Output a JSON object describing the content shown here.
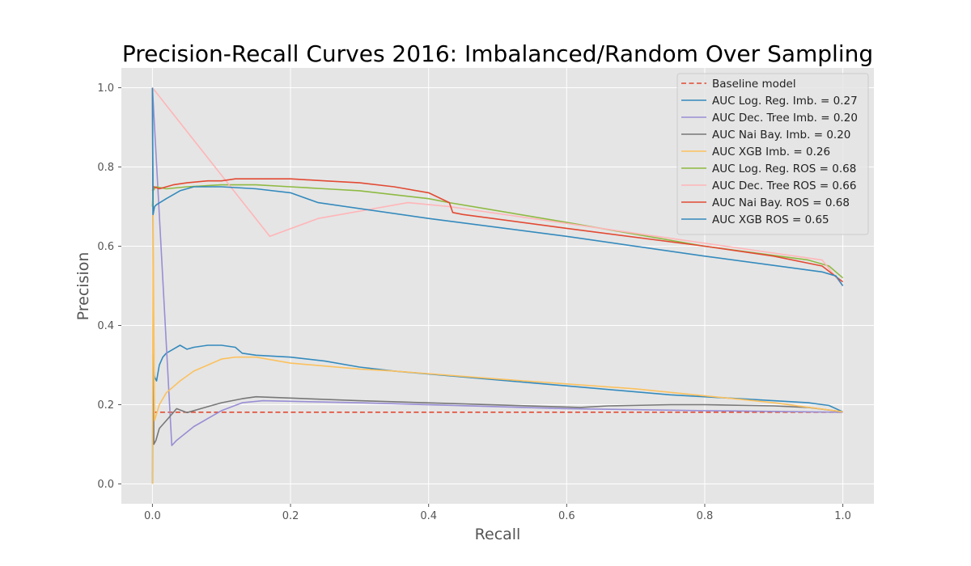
{
  "chart_data": {
    "type": "line",
    "title": "Precision-Recall Curves 2016: Imbalanced/Random Over Sampling",
    "xlabel": "Recall",
    "ylabel": "Precision",
    "xlim": [
      -0.045,
      1.045
    ],
    "ylim": [
      -0.05,
      1.05
    ],
    "xticks": [
      0.0,
      0.2,
      0.4,
      0.6,
      0.8,
      1.0
    ],
    "xtick_labels": [
      "0.0",
      "0.2",
      "0.4",
      "0.6",
      "0.8",
      "1.0"
    ],
    "yticks": [
      0.0,
      0.2,
      0.4,
      0.6,
      0.8,
      1.0
    ],
    "ytick_labels": [
      "0.0",
      "0.2",
      "0.4",
      "0.6",
      "0.8",
      "1.0"
    ],
    "grid": true,
    "legend_position": "top-right",
    "series": [
      {
        "name": "Baseline model",
        "color": "#E24A33",
        "dash": true,
        "x": [
          0,
          1
        ],
        "y": [
          0.181,
          0.181
        ]
      },
      {
        "name": "AUC Log. Reg. Imb. = 0.27",
        "color": "#348ABD",
        "x": [
          0,
          0.001,
          0.003,
          0.006,
          0.01,
          0.015,
          0.02,
          0.03,
          0.04,
          0.05,
          0.06,
          0.08,
          0.1,
          0.12,
          0.13,
          0.15,
          0.2,
          0.25,
          0.3,
          0.35,
          0.45,
          0.55,
          0.65,
          0.75,
          0.85,
          0.9,
          0.95,
          0.98,
          1.0
        ],
        "y": [
          0.0,
          0.3,
          0.27,
          0.26,
          0.3,
          0.32,
          0.33,
          0.34,
          0.35,
          0.34,
          0.345,
          0.35,
          0.35,
          0.345,
          0.33,
          0.325,
          0.32,
          0.31,
          0.295,
          0.285,
          0.27,
          0.255,
          0.24,
          0.225,
          0.215,
          0.21,
          0.205,
          0.198,
          0.182
        ]
      },
      {
        "name": "AUC Dec. Tree Imb. = 0.20",
        "color": "#988ED5",
        "x": [
          0,
          0.028,
          0.035,
          0.06,
          0.1,
          0.13,
          0.16,
          0.3,
          0.6,
          0.8,
          1.0
        ],
        "y": [
          1.0,
          0.097,
          0.11,
          0.145,
          0.185,
          0.205,
          0.21,
          0.205,
          0.19,
          0.185,
          0.181
        ]
      },
      {
        "name": "AUC Nai Bay. Imb. = 0.20",
        "color": "#777777",
        "x": [
          0,
          0.002,
          0.005,
          0.01,
          0.02,
          0.035,
          0.05,
          0.07,
          0.1,
          0.13,
          0.15,
          0.3,
          0.62,
          0.66,
          0.75,
          0.8,
          0.9,
          0.95,
          1.0
        ],
        "y": [
          1.0,
          0.1,
          0.11,
          0.14,
          0.16,
          0.19,
          0.18,
          0.19,
          0.205,
          0.215,
          0.22,
          0.21,
          0.193,
          0.197,
          0.2,
          0.2,
          0.197,
          0.193,
          0.182
        ]
      },
      {
        "name": "AUC XGB Imb. = 0.26",
        "color": "#FBC15E",
        "x": [
          0,
          0.001,
          0.003,
          0.01,
          0.02,
          0.04,
          0.06,
          0.08,
          0.1,
          0.12,
          0.15,
          0.2,
          0.3,
          0.35,
          0.5,
          0.7,
          0.9,
          1.0
        ],
        "y": [
          0.0,
          0.68,
          0.16,
          0.2,
          0.23,
          0.26,
          0.285,
          0.3,
          0.315,
          0.32,
          0.32,
          0.305,
          0.29,
          0.285,
          0.265,
          0.24,
          0.205,
          0.182
        ]
      },
      {
        "name": "AUC Log. Reg. ROS = 0.68",
        "color": "#8EBA42",
        "x": [
          0,
          0.001,
          0.005,
          0.02,
          0.05,
          0.1,
          0.15,
          0.2,
          0.25,
          0.3,
          0.35,
          0.4,
          0.43,
          0.6,
          0.8,
          0.95,
          0.98,
          1.0
        ],
        "y": [
          0.7,
          0.74,
          0.75,
          0.745,
          0.75,
          0.755,
          0.755,
          0.75,
          0.745,
          0.74,
          0.73,
          0.72,
          0.71,
          0.66,
          0.6,
          0.565,
          0.55,
          0.52
        ]
      },
      {
        "name": "AUC Dec. Tree ROS = 0.66",
        "color": "#FFB5B8",
        "x": [
          0,
          0.17,
          0.24,
          0.37,
          0.43,
          0.97,
          1.0
        ],
        "y": [
          1.0,
          0.625,
          0.67,
          0.71,
          0.7,
          0.565,
          0.5
        ]
      },
      {
        "name": "AUC Nai Bay. ROS = 0.68",
        "color": "#E24A33",
        "x": [
          0,
          0.002,
          0.01,
          0.03,
          0.05,
          0.08,
          0.1,
          0.12,
          0.15,
          0.2,
          0.25,
          0.3,
          0.35,
          0.4,
          0.43,
          0.435,
          0.45,
          0.6,
          0.8,
          0.9,
          0.97,
          1.0
        ],
        "y": [
          0.74,
          0.75,
          0.745,
          0.755,
          0.76,
          0.765,
          0.765,
          0.77,
          0.77,
          0.77,
          0.765,
          0.76,
          0.75,
          0.735,
          0.71,
          0.685,
          0.68,
          0.645,
          0.6,
          0.575,
          0.55,
          0.51
        ]
      },
      {
        "name": "AUC XGB ROS = 0.65",
        "color": "#348ABD",
        "x": [
          0,
          0.001,
          0.003,
          0.006,
          0.02,
          0.04,
          0.06,
          0.1,
          0.15,
          0.2,
          0.24,
          0.4,
          0.6,
          0.8,
          0.97,
          0.99,
          1.0
        ],
        "y": [
          1.0,
          0.68,
          0.7,
          0.705,
          0.72,
          0.74,
          0.75,
          0.75,
          0.745,
          0.735,
          0.71,
          0.67,
          0.625,
          0.575,
          0.535,
          0.525,
          0.5
        ]
      }
    ]
  }
}
